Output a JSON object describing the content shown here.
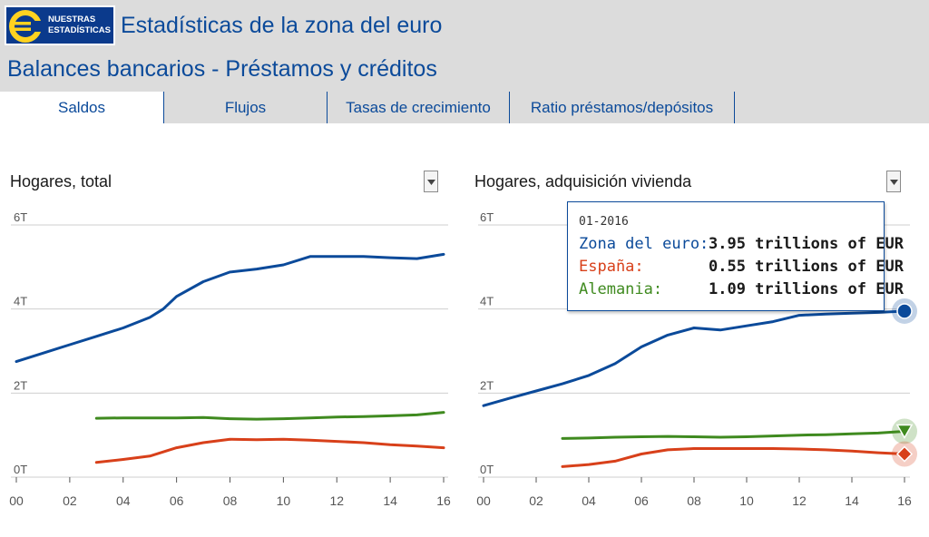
{
  "header": {
    "logo_line1": "NUESTRAS",
    "logo_line2": "ESTADÍSTICAS",
    "app_title": "Estadísticas de la zona del euro",
    "page_title": "Balances bancarios - Préstamos y créditos"
  },
  "tabs": [
    {
      "label": "Saldos",
      "active": true
    },
    {
      "label": "Flujos",
      "active": false
    },
    {
      "label": "Tasas de crecimiento",
      "active": false
    },
    {
      "label": "Ratio préstamos/depósitos",
      "active": false
    }
  ],
  "colors": {
    "brand": "#0b3a8c",
    "zona": "#0b4a9a",
    "espana": "#d8401a",
    "alemania": "#3f8a1f",
    "grid": "#cfcfcf"
  },
  "tooltip": {
    "date": "01-2016",
    "rows": [
      {
        "name": "Zona del euro:",
        "value": "3.95 trillions of EUR"
      },
      {
        "name": "España:",
        "value": "0.55 trillions of EUR"
      },
      {
        "name": "Alemania:",
        "value": "1.09 trillions of EUR"
      }
    ]
  },
  "chart_data": [
    {
      "type": "line",
      "title": "Hogares, total",
      "xlabel": "",
      "ylabel": "",
      "x_ticks": [
        "00",
        "02",
        "04",
        "06",
        "08",
        "10",
        "12",
        "14",
        "16"
      ],
      "y_ticks": [
        "0T",
        "2T",
        "4T",
        "6T"
      ],
      "xlim": [
        2000,
        2016
      ],
      "ylim": [
        0,
        6
      ],
      "series": [
        {
          "name": "Zona del euro",
          "color": "#0b4a9a",
          "x": [
            2000,
            2001,
            2002,
            2003,
            2004,
            2005,
            2005.5,
            2006,
            2007,
            2008,
            2009,
            2010,
            2011,
            2012,
            2013,
            2014,
            2015,
            2016
          ],
          "y": [
            2.75,
            2.95,
            3.15,
            3.35,
            3.55,
            3.8,
            4.0,
            4.3,
            4.65,
            4.88,
            4.95,
            5.05,
            5.25,
            5.25,
            5.25,
            5.22,
            5.2,
            5.3
          ]
        },
        {
          "name": "Alemania",
          "color": "#3f8a1f",
          "x": [
            2003,
            2004,
            2005,
            2006,
            2007,
            2008,
            2009,
            2010,
            2011,
            2012,
            2013,
            2014,
            2015,
            2016
          ],
          "y": [
            1.4,
            1.41,
            1.41,
            1.41,
            1.42,
            1.39,
            1.38,
            1.39,
            1.41,
            1.43,
            1.44,
            1.46,
            1.48,
            1.54
          ]
        },
        {
          "name": "España",
          "color": "#d8401a",
          "x": [
            2003,
            2004,
            2005,
            2006,
            2007,
            2008,
            2009,
            2010,
            2011,
            2012,
            2013,
            2014,
            2015,
            2016
          ],
          "y": [
            0.35,
            0.42,
            0.5,
            0.7,
            0.82,
            0.9,
            0.89,
            0.9,
            0.88,
            0.85,
            0.82,
            0.77,
            0.74,
            0.7
          ]
        }
      ]
    },
    {
      "type": "line",
      "title": "Hogares, adquisición vivienda",
      "xlabel": "",
      "ylabel": "",
      "x_ticks": [
        "00",
        "02",
        "04",
        "06",
        "08",
        "10",
        "12",
        "14",
        "16"
      ],
      "y_ticks": [
        "0T",
        "2T",
        "4T",
        "6T"
      ],
      "xlim": [
        2000,
        2016
      ],
      "ylim": [
        0,
        6
      ],
      "series": [
        {
          "name": "Zona del euro",
          "color": "#0b4a9a",
          "x": [
            2000,
            2001,
            2002,
            2003,
            2004,
            2005,
            2006,
            2007,
            2008,
            2009,
            2010,
            2011,
            2012,
            2013,
            2014,
            2015,
            2016
          ],
          "y": [
            1.7,
            1.88,
            2.05,
            2.22,
            2.42,
            2.7,
            3.1,
            3.38,
            3.55,
            3.5,
            3.6,
            3.7,
            3.85,
            3.88,
            3.9,
            3.92,
            3.95
          ]
        },
        {
          "name": "Alemania",
          "color": "#3f8a1f",
          "x": [
            2003,
            2004,
            2005,
            2006,
            2007,
            2008,
            2009,
            2010,
            2011,
            2012,
            2013,
            2014,
            2015,
            2016
          ],
          "y": [
            0.92,
            0.93,
            0.95,
            0.96,
            0.97,
            0.96,
            0.95,
            0.96,
            0.98,
            1.0,
            1.01,
            1.03,
            1.05,
            1.09
          ]
        },
        {
          "name": "España",
          "color": "#d8401a",
          "x": [
            2003,
            2004,
            2005,
            2006,
            2007,
            2008,
            2009,
            2010,
            2011,
            2012,
            2013,
            2014,
            2015,
            2016
          ],
          "y": [
            0.25,
            0.3,
            0.38,
            0.55,
            0.65,
            0.68,
            0.68,
            0.68,
            0.68,
            0.67,
            0.65,
            0.62,
            0.58,
            0.55
          ]
        }
      ]
    }
  ]
}
